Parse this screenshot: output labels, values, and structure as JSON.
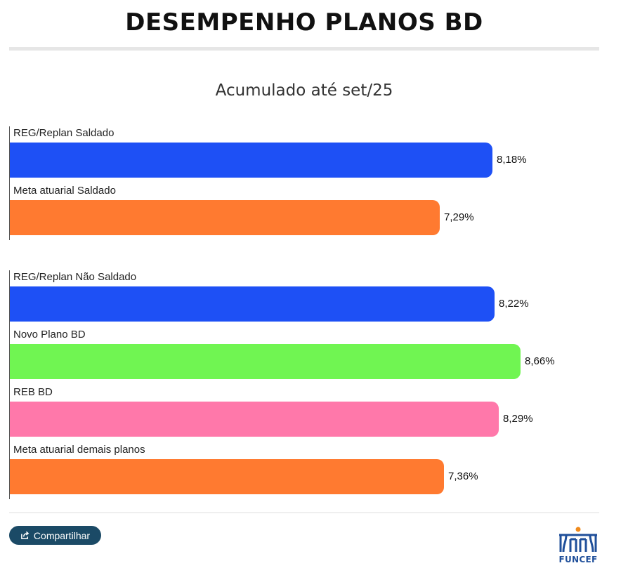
{
  "header": {
    "title": "DESEMPENHO PLANOS BD"
  },
  "chart_data": {
    "type": "bar",
    "orientation": "horizontal",
    "subtitle": "Acumulado até set/25",
    "groups": [
      {
        "items": [
          {
            "label": "REG/Replan Saldado",
            "value": 8.18,
            "display": "8,18%",
            "color": "#1e50f5"
          },
          {
            "label": "Meta atuarial Saldado",
            "value": 7.29,
            "display": "7,29%",
            "color": "#ff7a30"
          }
        ]
      },
      {
        "items": [
          {
            "label": "REG/Replan Não Saldado",
            "value": 8.22,
            "display": "8,22%",
            "color": "#1e50f5"
          },
          {
            "label": "Novo Plano BD",
            "value": 8.66,
            "display": "8,66%",
            "color": "#70f552"
          },
          {
            "label": "REB BD",
            "value": 8.29,
            "display": "8,29%",
            "color": "#ff78aa"
          },
          {
            "label": "Meta atuarial demais planos",
            "value": 7.36,
            "display": "7,36%",
            "color": "#ff7a30"
          }
        ]
      }
    ],
    "xlim": [
      0,
      8.66
    ],
    "grid": false,
    "legend": "none"
  },
  "footer": {
    "share_label": "Compartilhar",
    "logo_text": "FUNCEF",
    "logo_colors": {
      "primary": "#1f4f9a",
      "accent": "#f08a1c"
    }
  }
}
